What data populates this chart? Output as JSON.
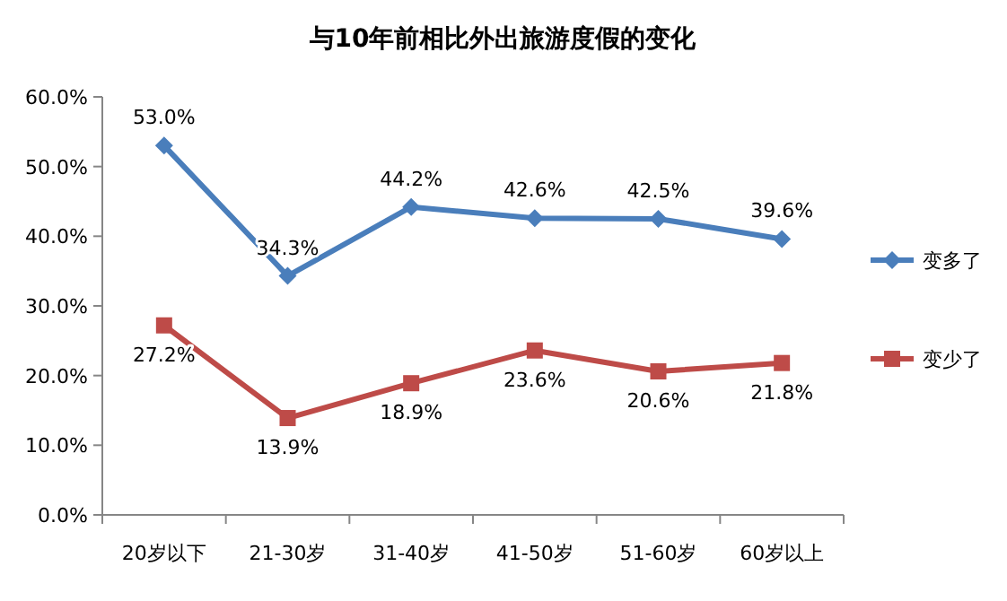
{
  "chart_data": {
    "type": "line",
    "title": "与10年前相比外出旅游度假的变化",
    "categories": [
      "20岁以下",
      "21-30岁",
      "31-40岁",
      "41-50岁",
      "51-60岁",
      "60岁以上"
    ],
    "series": [
      {
        "name": "变多了",
        "color": "#4a7ebb",
        "marker": "diamond",
        "values": [
          53.0,
          34.3,
          44.2,
          42.6,
          42.5,
          39.6
        ],
        "value_labels": [
          "53.0%",
          "34.3%",
          "44.2%",
          "42.6%",
          "42.5%",
          "39.6%"
        ]
      },
      {
        "name": "变少了",
        "color": "#be4b48",
        "marker": "square",
        "values": [
          27.2,
          13.9,
          18.9,
          23.6,
          20.6,
          21.8
        ],
        "value_labels": [
          "27.2%",
          "13.9%",
          "18.9%",
          "23.6%",
          "20.6%",
          "21.8%"
        ]
      }
    ],
    "ylim": [
      0,
      60
    ],
    "yticks": [
      {
        "value": 0,
        "label": "0.0%"
      },
      {
        "value": 10,
        "label": "10.0%"
      },
      {
        "value": 20,
        "label": "20.0%"
      },
      {
        "value": 30,
        "label": "30.0%"
      },
      {
        "value": 40,
        "label": "40.0%"
      },
      {
        "value": 50,
        "label": "50.0%"
      },
      {
        "value": 60,
        "label": "60.0%"
      }
    ],
    "legend": "right",
    "grid": false
  }
}
